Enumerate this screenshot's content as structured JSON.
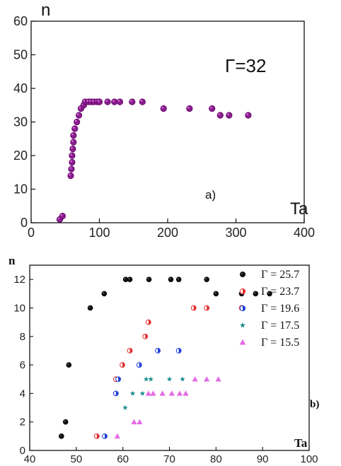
{
  "chart_data": [
    {
      "type": "scatter",
      "panel": "a)",
      "xlabel": "Ta",
      "ylabel": "n",
      "xlim": [
        0,
        400
      ],
      "ylim": [
        0,
        60
      ],
      "xticks": [
        "0",
        "100",
        "200",
        "300",
        "400"
      ],
      "yticks": [
        "0",
        "10",
        "20",
        "30",
        "40",
        "50",
        "60"
      ],
      "annotation": "Γ=32",
      "series": [
        {
          "color": "#8a1f8e",
          "marker": "circle",
          "points": [
            [
              42,
              1
            ],
            [
              46,
              2
            ],
            [
              58,
              14
            ],
            [
              59,
              16
            ],
            [
              60,
              18
            ],
            [
              60,
              20
            ],
            [
              61,
              22
            ],
            [
              62,
              24
            ],
            [
              62,
              26
            ],
            [
              64,
              28
            ],
            [
              67,
              30
            ],
            [
              70,
              32
            ],
            [
              73,
              34
            ],
            [
              77,
              35
            ],
            [
              79,
              36
            ],
            [
              84,
              36
            ],
            [
              88,
              36
            ],
            [
              92,
              36
            ],
            [
              97,
              36
            ],
            [
              100,
              36
            ],
            [
              112,
              36
            ],
            [
              122,
              36
            ],
            [
              130,
              36
            ],
            [
              148,
              36
            ],
            [
              163,
              36
            ],
            [
              194,
              34
            ],
            [
              232,
              34
            ],
            [
              265,
              34
            ],
            [
              277,
              32
            ],
            [
              290,
              32
            ],
            [
              318,
              32
            ]
          ]
        }
      ]
    },
    {
      "type": "scatter",
      "panel": "b)",
      "xlabel": "Ta",
      "ylabel": "n",
      "xlim": [
        40,
        100
      ],
      "ylim": [
        0,
        13
      ],
      "xticks": [
        "40",
        "50",
        "60",
        "70",
        "80",
        "90",
        "100"
      ],
      "yticks": [
        "0",
        "2",
        "4",
        "6",
        "8",
        "10",
        "12"
      ],
      "legend_position": "top-right",
      "series": [
        {
          "name": "Γ  =  25.7",
          "color": "#111111",
          "marker": "circle",
          "points": [
            [
              46.8,
              1
            ],
            [
              47.7,
              2
            ],
            [
              48.4,
              6
            ],
            [
              53,
              10
            ],
            [
              56,
              11
            ],
            [
              60.6,
              12
            ],
            [
              61.5,
              12
            ],
            [
              65.6,
              12
            ],
            [
              70.3,
              12
            ],
            [
              72,
              12
            ],
            [
              78,
              12
            ],
            [
              80,
              11
            ],
            [
              85.5,
              11
            ],
            [
              88.5,
              11
            ],
            [
              91.5,
              11
            ]
          ]
        },
        {
          "name": "Γ  =  23.7",
          "color": "#e03030",
          "marker": "half-circle",
          "points": [
            [
              54.4,
              1
            ],
            [
              58.5,
              5
            ],
            [
              59.9,
              6
            ],
            [
              61.5,
              7
            ],
            [
              64.8,
              8
            ],
            [
              65.5,
              9
            ],
            [
              75.2,
              10
            ],
            [
              78,
              10
            ],
            [
              85.5,
              10
            ]
          ]
        },
        {
          "name": "Γ  =  19.6",
          "color": "#1f3fd8",
          "marker": "half-circle",
          "points": [
            [
              56.1,
              1
            ],
            [
              58.5,
              4
            ],
            [
              59,
              5
            ],
            [
              63.5,
              6
            ],
            [
              67.5,
              7
            ],
            [
              72,
              7
            ]
          ]
        },
        {
          "name": "Γ  =  17.5",
          "color": "#1f8f8f",
          "marker": "star",
          "points": [
            [
              60.5,
              3
            ],
            [
              62.1,
              4
            ],
            [
              64.2,
              4
            ],
            [
              65,
              5
            ],
            [
              66,
              5
            ],
            [
              70,
              5
            ],
            [
              72.8,
              5
            ]
          ]
        },
        {
          "name": "Γ  =  15.5",
          "color": "#e050e0",
          "marker": "triangle",
          "points": [
            [
              58.8,
              1
            ],
            [
              62.4,
              2
            ],
            [
              63.6,
              2
            ],
            [
              65.5,
              4
            ],
            [
              66.5,
              4
            ],
            [
              68.5,
              4
            ],
            [
              70.5,
              4
            ],
            [
              72.2,
              4
            ],
            [
              73.5,
              4
            ],
            [
              75.5,
              5
            ],
            [
              78,
              5
            ],
            [
              80.5,
              5
            ]
          ]
        }
      ]
    }
  ]
}
